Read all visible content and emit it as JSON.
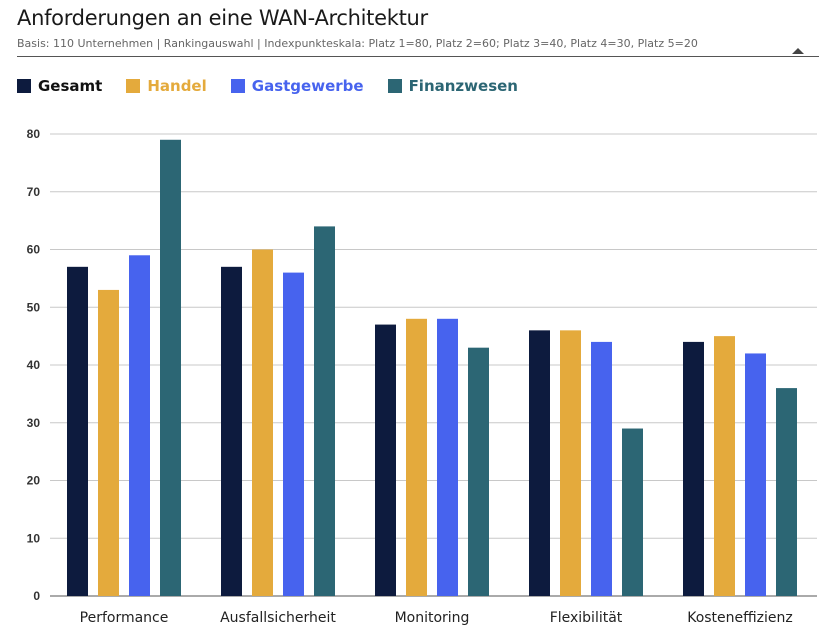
{
  "header": {
    "title": "Anforderungen an eine WAN-Architektur",
    "subtitle": "Basis: 110 Unternehmen | Rankingauswahl | Indexpunkteskala: Platz 1=80, Platz 2=60; Platz 3=40, Platz 4=30, Platz 5=20",
    "dropdown_icon": "triangle-up-icon"
  },
  "chart_data": {
    "type": "bar",
    "categories": [
      "Performance",
      "Ausfallsicherheit",
      "Monitoring",
      "Flexibilität",
      "Kosteneffizienz"
    ],
    "series": [
      {
        "name": "Gesamt",
        "color": "#0d1b3e",
        "legend_color": "#0d1b3e",
        "values": [
          57,
          57,
          47,
          46,
          44
        ]
      },
      {
        "name": "Handel",
        "color": "#e4aa3c",
        "legend_color": "#e4aa3c",
        "values": [
          53,
          60,
          48,
          46,
          45
        ]
      },
      {
        "name": "Gastgewerbe",
        "color": "#4763ee",
        "legend_color": "#4763ee",
        "values": [
          59,
          56,
          48,
          44,
          42
        ]
      },
      {
        "name": "Finanzwesen",
        "color": "#2c6674",
        "legend_color": "#2c6674",
        "values": [
          79,
          64,
          43,
          29,
          36
        ]
      }
    ],
    "yticks": [
      0,
      10,
      20,
      30,
      40,
      50,
      60,
      70,
      80
    ],
    "ylim": [
      0,
      80
    ],
    "grid": true,
    "legend_position": "top-left"
  }
}
